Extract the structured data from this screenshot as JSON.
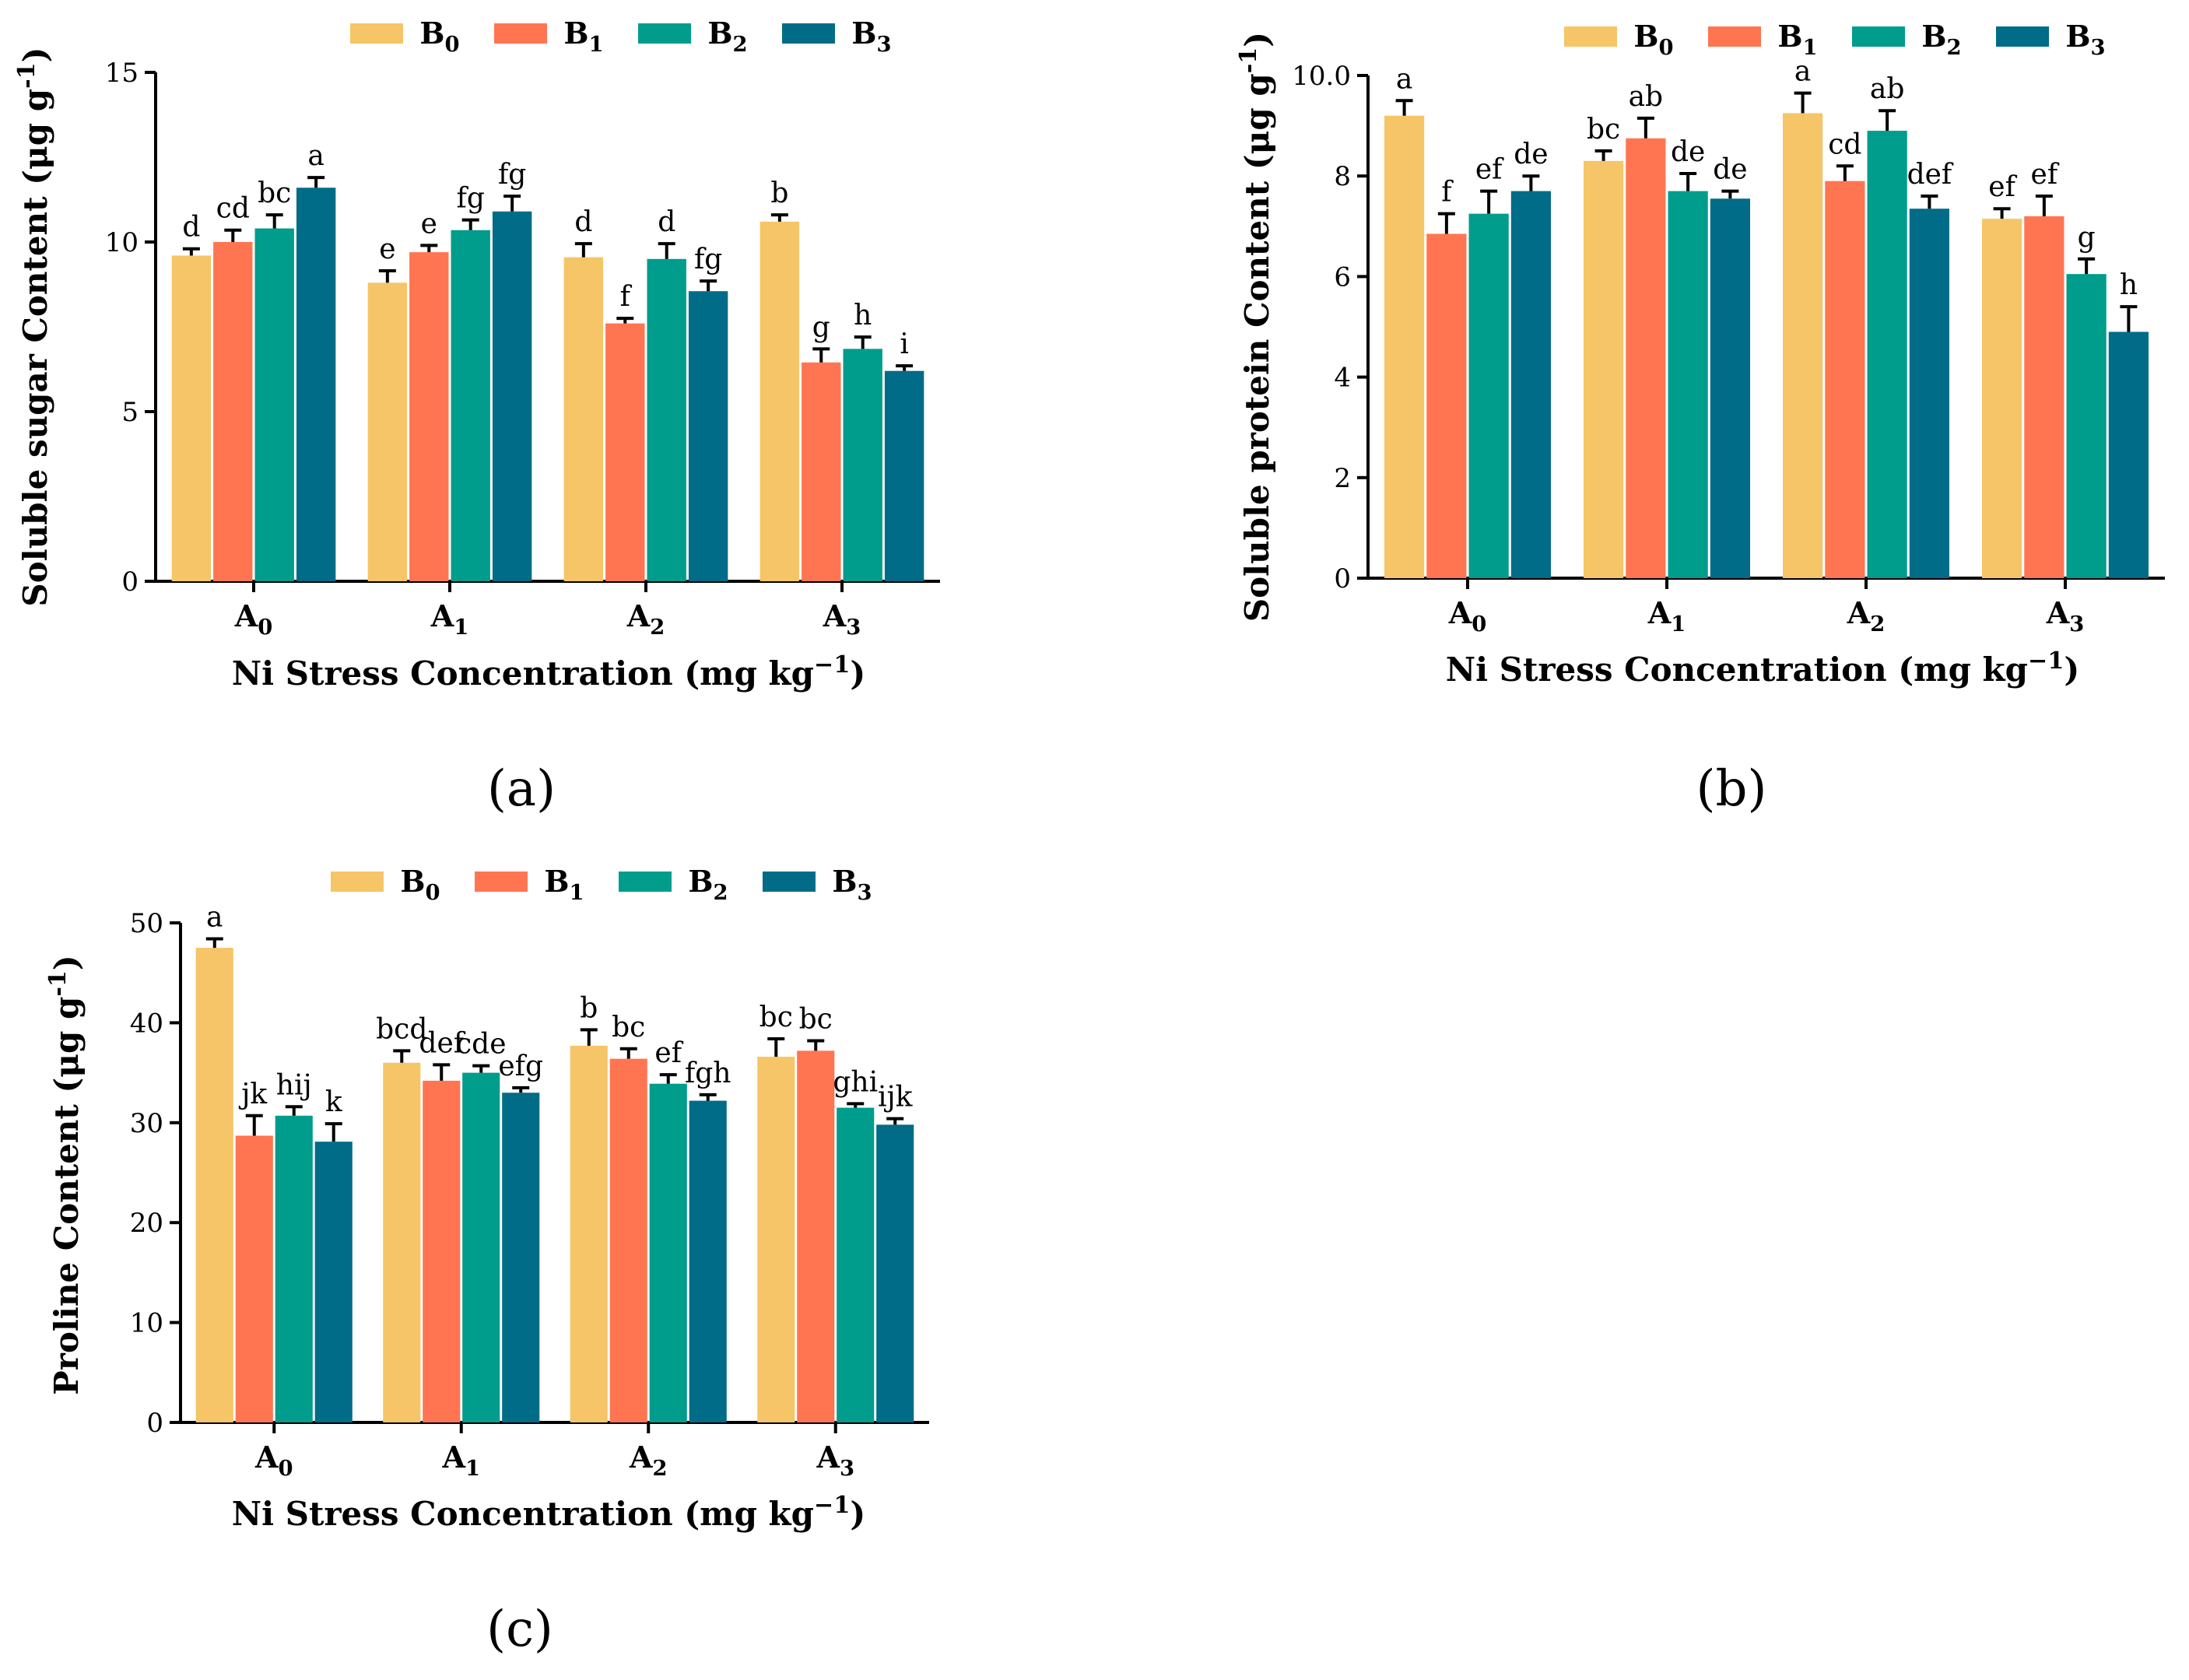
{
  "figure": {
    "panels": [
      {
        "id": "a",
        "label": "(a)"
      },
      {
        "id": "b",
        "label": "(b)"
      },
      {
        "id": "c",
        "label": "(c)"
      }
    ]
  },
  "legend": {
    "series": [
      {
        "name": "B",
        "sub": "0",
        "color": "#F6C567"
      },
      {
        "name": "B",
        "sub": "1",
        "color": "#FF7552"
      },
      {
        "name": "B",
        "sub": "2",
        "color": "#009C8C"
      },
      {
        "name": "B",
        "sub": "3",
        "color": "#006C87"
      }
    ]
  },
  "chart_data": [
    {
      "panel": "a",
      "type": "bar",
      "categories": [
        {
          "name": "A",
          "sub": "0"
        },
        {
          "name": "A",
          "sub": "1"
        },
        {
          "name": "A",
          "sub": "2"
        },
        {
          "name": "A",
          "sub": "3"
        }
      ],
      "ylabel": {
        "main": "Soluble sugar Content (μg g",
        "sup": "-1",
        "end": ")"
      },
      "xlabel": {
        "main": "Ni Stress Concentration (mg kg",
        "sup": "−1",
        "end": ")"
      },
      "ylim": [
        0,
        15
      ],
      "yticks": [
        0,
        5,
        10,
        15
      ],
      "series": [
        {
          "name": "B0",
          "values": [
            9.6,
            8.8,
            9.55,
            10.6
          ],
          "errors": [
            0.2,
            0.35,
            0.4,
            0.2
          ],
          "letters": [
            "d",
            "e",
            "d",
            "b"
          ]
        },
        {
          "name": "B1",
          "values": [
            10.0,
            9.7,
            7.6,
            6.45
          ],
          "errors": [
            0.35,
            0.2,
            0.15,
            0.4
          ],
          "letters": [
            "cd",
            "e",
            "f",
            "g"
          ]
        },
        {
          "name": "B2",
          "values": [
            10.4,
            10.35,
            9.5,
            6.85
          ],
          "errors": [
            0.4,
            0.3,
            0.45,
            0.35
          ],
          "letters": [
            "bc",
            "fg",
            "d",
            "h"
          ]
        },
        {
          "name": "B3",
          "values": [
            11.6,
            10.9,
            8.55,
            6.2
          ],
          "errors": [
            0.3,
            0.45,
            0.3,
            0.15
          ],
          "letters": [
            "a",
            "fg",
            "fg",
            "i"
          ]
        }
      ]
    },
    {
      "panel": "b",
      "type": "bar",
      "categories": [
        {
          "name": "A",
          "sub": "0"
        },
        {
          "name": "A",
          "sub": "1"
        },
        {
          "name": "A",
          "sub": "2"
        },
        {
          "name": "A",
          "sub": "3"
        }
      ],
      "ylabel": {
        "main": "Soluble protein  Content (μg g",
        "sup": "-1",
        "end": ")"
      },
      "xlabel": {
        "main": "Ni Stress Concentration (mg kg",
        "sup": "−1",
        "end": ")"
      },
      "ylim": [
        0,
        10
      ],
      "yticks": [
        0,
        2,
        4,
        6,
        8,
        10.0
      ],
      "ytick_labels": [
        "0",
        "2",
        "4",
        "6",
        "8",
        "10.0"
      ],
      "series": [
        {
          "name": "B0",
          "values": [
            9.2,
            8.3,
            9.25,
            7.15
          ],
          "errors": [
            0.3,
            0.2,
            0.4,
            0.2
          ],
          "letters": [
            "a",
            "bc",
            "a",
            "ef"
          ]
        },
        {
          "name": "B1",
          "values": [
            6.85,
            8.75,
            7.9,
            7.2
          ],
          "errors": [
            0.4,
            0.4,
            0.3,
            0.4
          ],
          "letters": [
            "f",
            "ab",
            "cd",
            "ef"
          ]
        },
        {
          "name": "B2",
          "values": [
            7.25,
            7.7,
            8.9,
            6.05
          ],
          "errors": [
            0.45,
            0.35,
            0.4,
            0.3
          ],
          "letters": [
            "ef",
            "de",
            "ab",
            "g"
          ]
        },
        {
          "name": "B3",
          "values": [
            7.7,
            7.55,
            7.35,
            4.9
          ],
          "errors": [
            0.3,
            0.15,
            0.25,
            0.5
          ],
          "letters": [
            "de",
            "de",
            "def",
            "h"
          ]
        }
      ]
    },
    {
      "panel": "c",
      "type": "bar",
      "categories": [
        {
          "name": "A",
          "sub": "0"
        },
        {
          "name": "A",
          "sub": "1"
        },
        {
          "name": "A",
          "sub": "2"
        },
        {
          "name": "A",
          "sub": "3"
        }
      ],
      "ylabel": {
        "main": "Proline Content (μg g",
        "sup": "-1",
        "end": ")"
      },
      "xlabel": {
        "main": "Ni Stress Concentration (mg kg",
        "sup": "−1",
        "end": ")"
      },
      "ylim": [
        0,
        50
      ],
      "yticks": [
        0,
        10,
        20,
        30,
        40,
        50
      ],
      "series": [
        {
          "name": "B0",
          "values": [
            47.5,
            36.0,
            37.7,
            36.6
          ],
          "errors": [
            0.9,
            1.2,
            1.6,
            1.8
          ],
          "letters": [
            "a",
            "bcd",
            "b",
            "bc"
          ]
        },
        {
          "name": "B1",
          "values": [
            28.7,
            34.2,
            36.4,
            37.2
          ],
          "errors": [
            2.0,
            1.6,
            1.0,
            1.0
          ],
          "letters": [
            "jk",
            "def",
            "bc",
            "bc"
          ]
        },
        {
          "name": "B2",
          "values": [
            30.7,
            35.0,
            33.9,
            31.5
          ],
          "errors": [
            0.9,
            0.7,
            0.9,
            0.4
          ],
          "letters": [
            "hij",
            "cde",
            "ef",
            "ghi"
          ]
        },
        {
          "name": "B3",
          "values": [
            28.1,
            33.0,
            32.2,
            29.8
          ],
          "errors": [
            1.8,
            0.5,
            0.6,
            0.6
          ],
          "letters": [
            "k",
            "efg",
            "fgh",
            "ijk"
          ]
        }
      ]
    }
  ]
}
